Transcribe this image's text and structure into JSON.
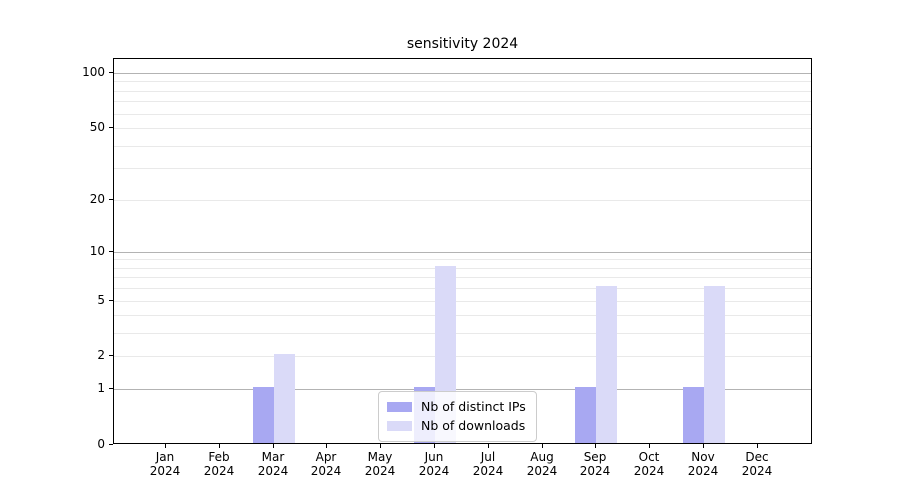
{
  "chart_data": {
    "type": "bar",
    "title": "sensitivity 2024",
    "categories": [
      "Jan 2024",
      "Feb 2024",
      "Mar 2024",
      "Apr 2024",
      "May 2024",
      "Jun 2024",
      "Jul 2024",
      "Aug 2024",
      "Sep 2024",
      "Oct 2024",
      "Nov 2024",
      "Dec 2024"
    ],
    "series": [
      {
        "name": "Nb of distinct IPs",
        "color": "#a8a8f2",
        "values": [
          0,
          0,
          1,
          0,
          0,
          1,
          0,
          0,
          1,
          0,
          1,
          0
        ]
      },
      {
        "name": "Nb of downloads",
        "color": "#dadaf8",
        "values": [
          0,
          0,
          2,
          0,
          0,
          8,
          0,
          0,
          6,
          0,
          6,
          0
        ]
      }
    ],
    "xlabel": "",
    "ylabel": "",
    "y_scale": "log10(1+value)",
    "ylim": [
      0,
      119
    ],
    "y_ticks": [
      0,
      1,
      2,
      5,
      10,
      20,
      50,
      100
    ],
    "y_major_gridlines": [
      1,
      10,
      100
    ],
    "y_minor_gridlines": [
      2,
      3,
      4,
      5,
      6,
      7,
      8,
      9,
      20,
      30,
      40,
      50,
      60,
      70,
      80,
      90
    ],
    "grid": true,
    "legend": {
      "entries": [
        "Nb of distinct IPs",
        "Nb of downloads"
      ],
      "position": "lower center"
    },
    "colors": {
      "major_grid": "#b3b3b3",
      "minor_grid": "#e9e9e9",
      "spine": "#000000",
      "background": "#ffffff"
    }
  }
}
